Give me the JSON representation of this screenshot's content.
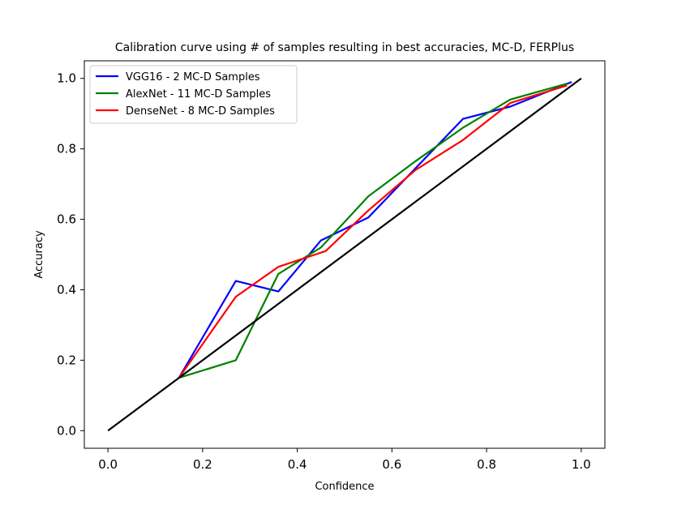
{
  "chart_data": {
    "type": "line",
    "title": "Calibration curve using # of samples resulting in best accuracies, MC-D, FERPlus",
    "xlabel": "Confidence",
    "ylabel": "Accuracy",
    "xlim": [
      -0.05,
      1.05
    ],
    "ylim": [
      -0.05,
      1.05
    ],
    "xticks": [
      "0.0",
      "0.2",
      "0.4",
      "0.6",
      "0.8",
      "1.0"
    ],
    "yticks": [
      "0.0",
      "0.2",
      "0.4",
      "0.6",
      "0.8",
      "1.0"
    ],
    "grid": false,
    "legend_position": "top-left",
    "series": [
      {
        "name": "VGG16 - 2 MC-D Samples",
        "color": "#0000ff",
        "x": [
          0.15,
          0.27,
          0.36,
          0.45,
          0.55,
          0.65,
          0.75,
          0.85,
          0.98
        ],
        "y": [
          0.15,
          0.425,
          0.395,
          0.54,
          0.605,
          0.745,
          0.885,
          0.92,
          0.99
        ]
      },
      {
        "name": "AlexNet - 11 MC-D Samples",
        "color": "#008000",
        "x": [
          0.15,
          0.27,
          0.36,
          0.45,
          0.55,
          0.65,
          0.75,
          0.85,
          0.97
        ],
        "y": [
          0.15,
          0.2,
          0.445,
          0.52,
          0.665,
          0.765,
          0.86,
          0.94,
          0.985
        ]
      },
      {
        "name": "DenseNet - 8 MC-D Samples",
        "color": "#ff0000",
        "x": [
          0.15,
          0.27,
          0.36,
          0.46,
          0.55,
          0.65,
          0.75,
          0.85,
          0.97
        ],
        "y": [
          0.15,
          0.38,
          0.465,
          0.51,
          0.625,
          0.74,
          0.825,
          0.93,
          0.98
        ]
      },
      {
        "name": "",
        "color": "#000000",
        "x": [
          0.0,
          1.0
        ],
        "y": [
          0.0,
          1.0
        ]
      }
    ]
  }
}
